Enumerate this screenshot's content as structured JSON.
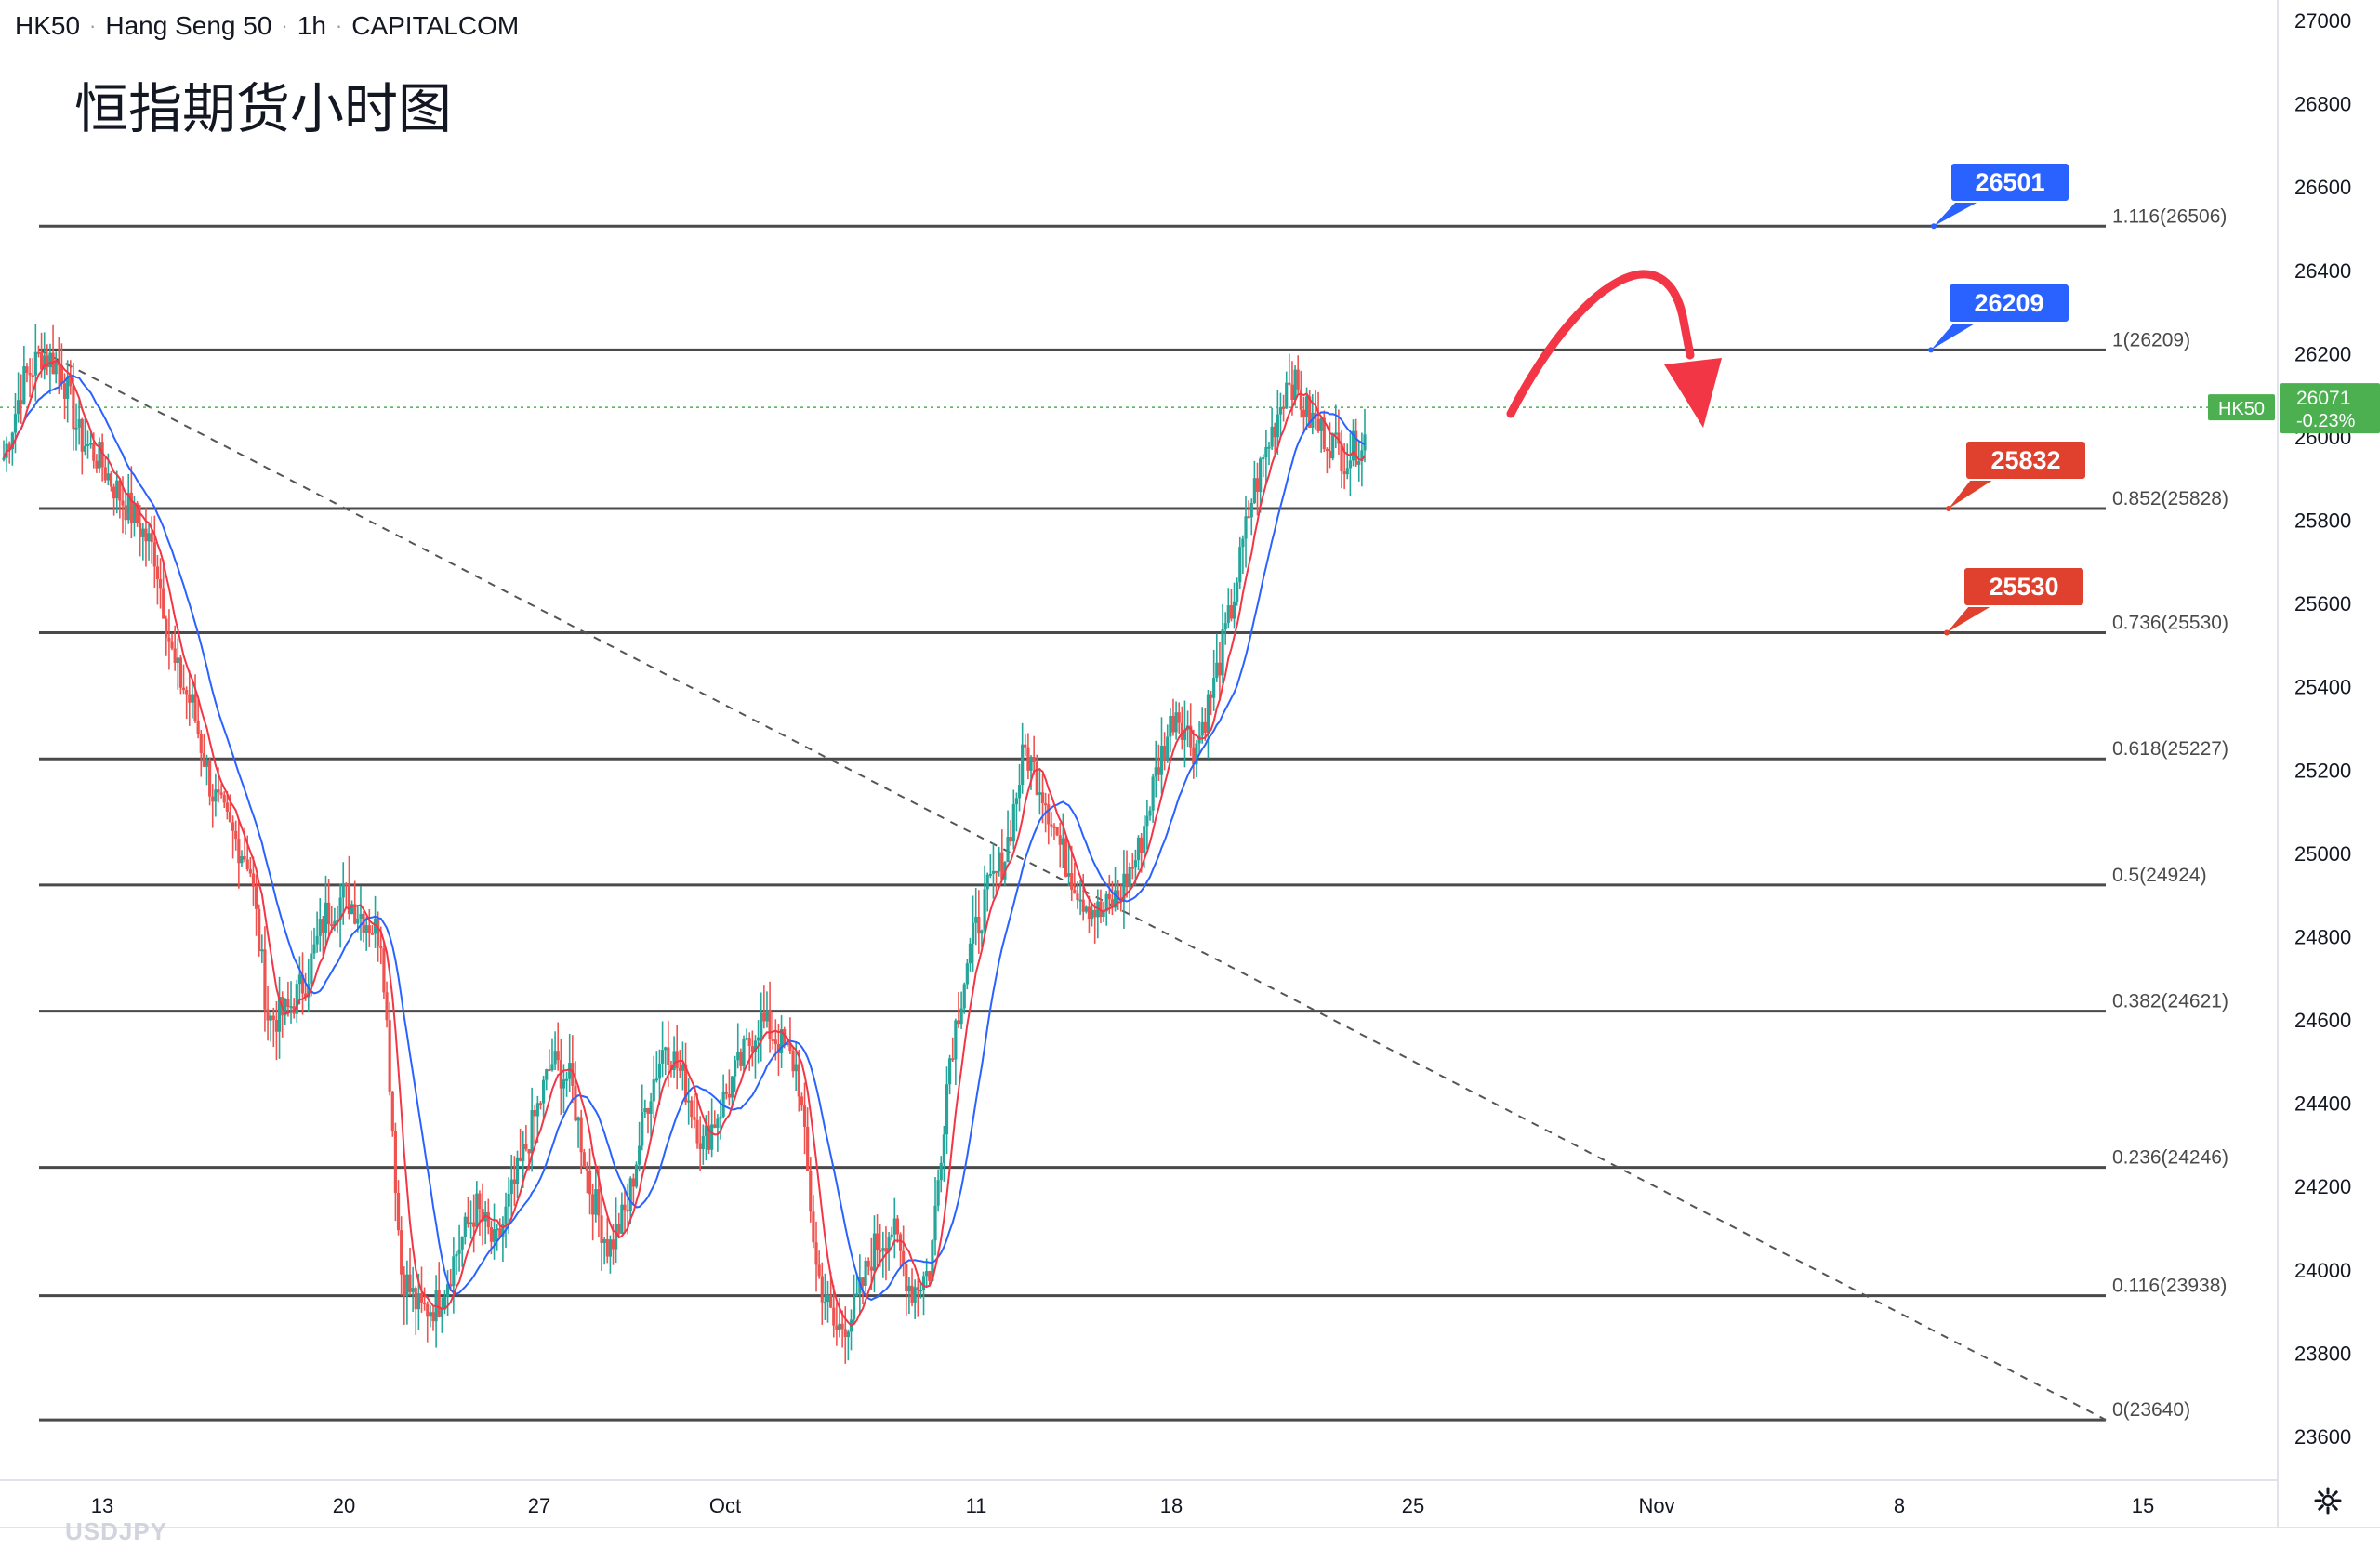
{
  "header": {
    "symbol": "HK50",
    "name": "Hang Seng 50",
    "interval": "1h",
    "source": "CAPITALCOM"
  },
  "annotation_title": "恒指期货小时图",
  "watermark": "USDJPY",
  "price_tag": {
    "label": "HK50",
    "value": "26071",
    "change": "-0.23%",
    "color": "#4caf50"
  },
  "icons": {
    "settings": "gear-icon"
  },
  "colors": {
    "up": "#26a69a",
    "down": "#ef5350",
    "ma_fast": "#f23645",
    "ma_slow": "#2962ff",
    "fib_line": "#4a4a4a",
    "callout_blue": "#2962ff",
    "callout_red": "#e0412f",
    "arrow": "#f23645",
    "price_line": "#4caf50"
  },
  "chart_data": {
    "type": "candlestick",
    "symbol": "HK50",
    "interval": "1h",
    "ylim": [
      23560,
      27020
    ],
    "y_ticks": [
      27000,
      26800,
      26600,
      26400,
      26200,
      26000,
      25800,
      25600,
      25400,
      25200,
      25000,
      24800,
      24600,
      24400,
      24200,
      24000,
      23800,
      23600
    ],
    "x_ticks": [
      "13",
      "20",
      "27",
      "Oct",
      "11",
      "18",
      "25",
      "Nov",
      "8",
      "15"
    ],
    "last_price": 26071,
    "fib_levels": [
      {
        "ratio": "1.116",
        "price": 26506,
        "label": "1.116(26506)"
      },
      {
        "ratio": "1",
        "price": 26209,
        "label": "1(26209)"
      },
      {
        "ratio": "0.852",
        "price": 25828,
        "label": "0.852(25828)"
      },
      {
        "ratio": "0.736",
        "price": 25530,
        "label": "0.736(25530)"
      },
      {
        "ratio": "0.618",
        "price": 25227,
        "label": "0.618(25227)"
      },
      {
        "ratio": "0.5",
        "price": 24924,
        "label": "0.5(24924)"
      },
      {
        "ratio": "0.382",
        "price": 24621,
        "label": "0.382(24621)"
      },
      {
        "ratio": "0.236",
        "price": 24246,
        "label": "0.236(24246)"
      },
      {
        "ratio": "0.116",
        "price": 23938,
        "label": "0.116(23938)"
      },
      {
        "ratio": "0",
        "price": 23640,
        "label": "0(23640)"
      }
    ],
    "callouts": [
      {
        "label": "26501",
        "color": "blue"
      },
      {
        "label": "26209",
        "color": "blue"
      },
      {
        "label": "25832",
        "color": "red"
      },
      {
        "label": "25530",
        "color": "red"
      }
    ],
    "trendline": {
      "from": [
        26209,
        "start"
      ],
      "to": [
        23640,
        "end"
      ],
      "style": "dashed"
    },
    "close_path": [
      25950,
      26130,
      26200,
      26170,
      26000,
      25950,
      25870,
      25800,
      25720,
      25450,
      25350,
      25150,
      25050,
      24980,
      24600,
      24620,
      24700,
      24850,
      24900,
      24850,
      24800,
      24000,
      23900,
      23920,
      24050,
      24150,
      24050,
      24200,
      24350,
      24500,
      24450,
      24200,
      24050,
      24150,
      24400,
      24550,
      24450,
      24300,
      24400,
      24500,
      24600,
      24550,
      24480,
      24000,
      23850,
      23900,
      24050,
      24100,
      23950,
      24000,
      24500,
      24750,
      24900,
      25000,
      25250,
      25150,
      25000,
      24900,
      24850,
      24900,
      25000,
      25200,
      25350,
      25250,
      25400,
      25600,
      25850,
      26000,
      26150,
      26050,
      26000,
      25950,
      26000
    ]
  }
}
